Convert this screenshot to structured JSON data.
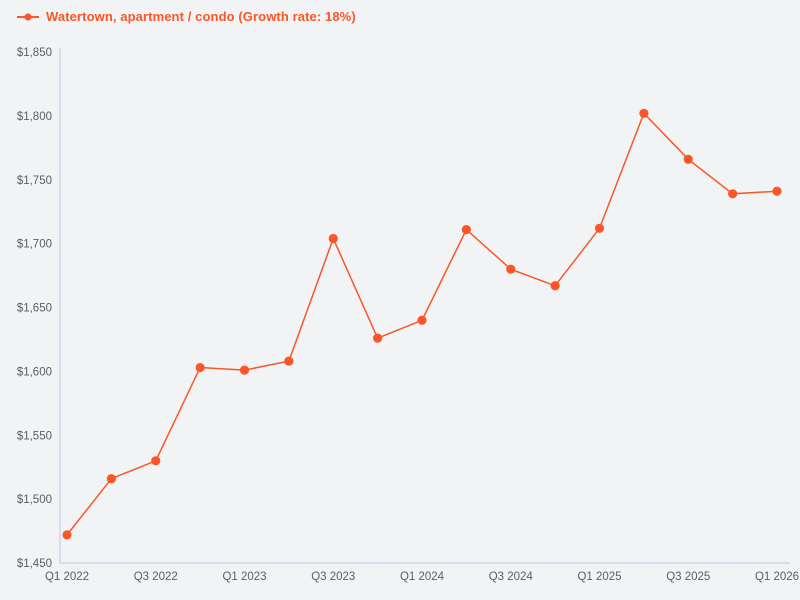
{
  "legend": {
    "label": "Watertown, apartment / condo (Growth rate: 18%)"
  },
  "chart_data": {
    "type": "line",
    "title": "Watertown, apartment / condo (Growth rate: 18%)",
    "categories": [
      "Q1 2022",
      "Q2 2022",
      "Q3 2022",
      "Q4 2022",
      "Q1 2023",
      "Q2 2023",
      "Q3 2023",
      "Q4 2023",
      "Q1 2024",
      "Q2 2024",
      "Q3 2024",
      "Q4 2024",
      "Q1 2025",
      "Q2 2025",
      "Q3 2025",
      "Q4 2025",
      "Q1 2026"
    ],
    "series": [
      {
        "name": "Watertown, apartment / condo",
        "growth_rate_label": "Growth rate: 18%",
        "values": [
          1472,
          1516,
          1530,
          1603,
          1601,
          1608,
          1704,
          1626,
          1640,
          1711,
          1680,
          1667,
          1712,
          1802,
          1766,
          1739,
          1741
        ]
      }
    ],
    "x_tick_labels": [
      "Q1 2022",
      "Q3 2022",
      "Q1 2023",
      "Q3 2023",
      "Q1 2024",
      "Q3 2024",
      "Q1 2025",
      "Q3 2025",
      "Q1 2026"
    ],
    "y_ticks": [
      1450,
      1500,
      1550,
      1600,
      1650,
      1700,
      1750,
      1800,
      1850
    ],
    "y_tick_prefix": "$",
    "ylim": [
      1450,
      1850
    ],
    "xlabel": "",
    "ylabel": "",
    "grid": false,
    "legend_position": "top-left",
    "marker": "circle",
    "colors": {
      "line": "#fa5628",
      "marker": "#fa5628",
      "axis": "#ccd7e8",
      "tick_text": "#5a5f66",
      "background": "#f2f3f5"
    }
  }
}
